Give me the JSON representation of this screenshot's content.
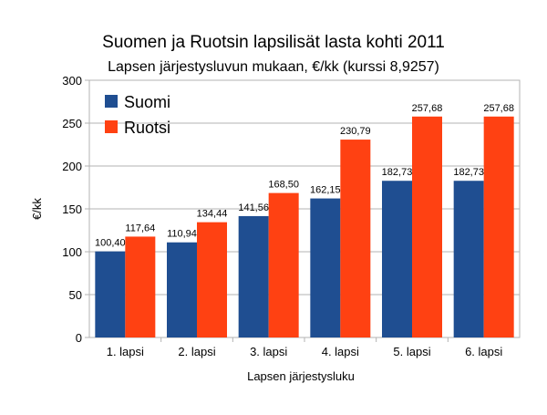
{
  "chart_data": {
    "type": "bar",
    "title": "Suomen ja Ruotsin lapsilisät lasta kohti 2011",
    "subtitle": "Lapsen järjestysluvun mukaan, €/kk (kurssi 8,9257)",
    "xlabel": "Lapsen järjestysluku",
    "ylabel": "€/kk",
    "ylim": [
      0,
      300
    ],
    "yticks": [
      "0",
      "50",
      "100",
      "150",
      "200",
      "250",
      "300"
    ],
    "grid": true,
    "legend": "top-left",
    "categories": [
      "1. lapsi",
      "2. lapsi",
      "3. lapsi",
      "4. lapsi",
      "5. lapsi",
      "6. lapsi"
    ],
    "series": [
      {
        "name": "Suomi",
        "color": "#1f4e91",
        "values": [
          100.4,
          110.94,
          141.56,
          162.15,
          182.73,
          182.73
        ],
        "labels": [
          "100,40",
          "110,94",
          "141,56",
          "162,15",
          "182,73",
          "182,73"
        ]
      },
      {
        "name": "Ruotsi",
        "color": "#ff4112",
        "values": [
          117.64,
          134.44,
          168.5,
          230.79,
          257.68,
          257.68
        ],
        "labels": [
          "117,64",
          "134,44",
          "168,50",
          "230,79",
          "257,68",
          "257,68"
        ]
      }
    ]
  }
}
